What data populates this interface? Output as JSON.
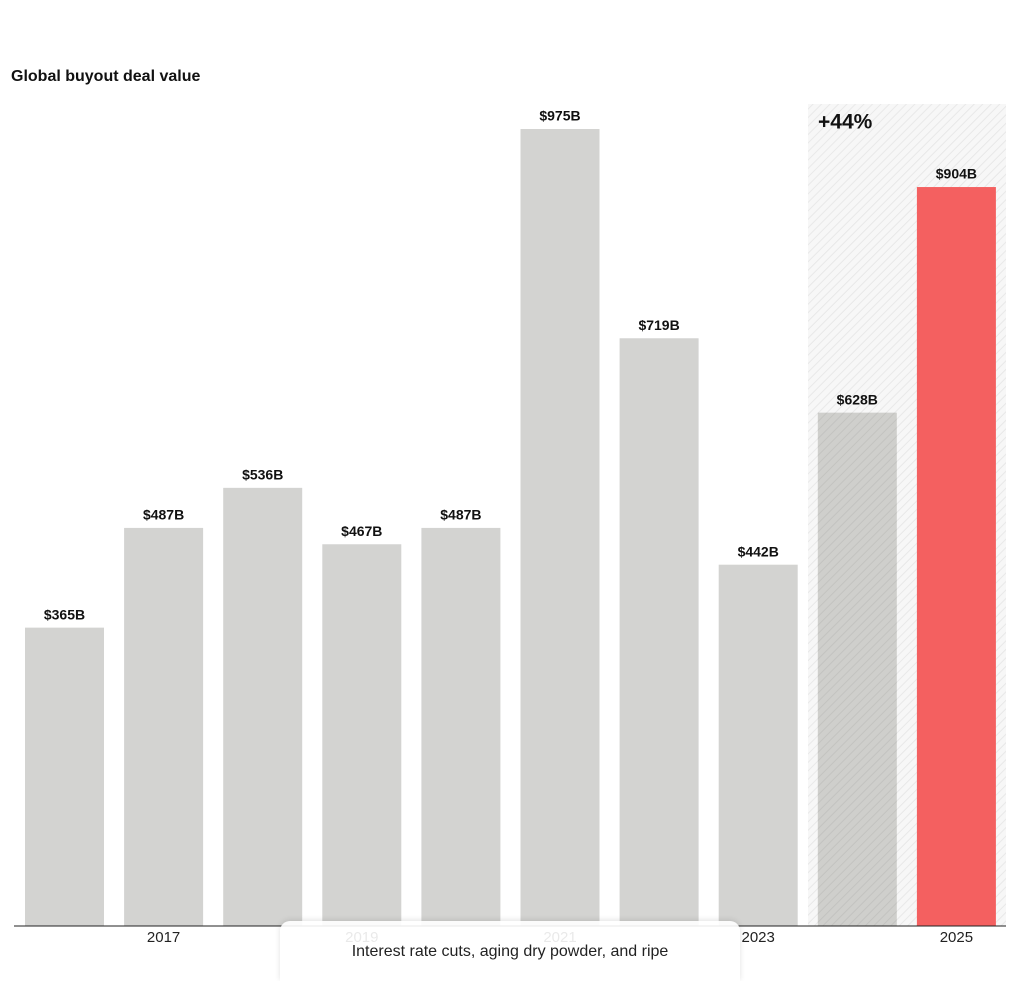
{
  "chart_data": {
    "type": "bar",
    "title": "Global buyout deal value",
    "categories": [
      null,
      "2017",
      null,
      "2019",
      null,
      "2021",
      null,
      "2023",
      null,
      "2025"
    ],
    "values": [
      365,
      487,
      536,
      467,
      487,
      975,
      719,
      442,
      628,
      904
    ],
    "value_labels": [
      "$365B",
      "$487B",
      "$536B",
      "$467B",
      "$487B",
      "$975B",
      "$719B",
      "$442B",
      "$628B",
      "$904B"
    ],
    "colors": [
      "#d3d3d1",
      "#d3d3d1",
      "#d3d3d1",
      "#d3d3d1",
      "#d3d3d1",
      "#d3d3d1",
      "#d3d3d1",
      "#d3d3d1",
      "#cfcfcc",
      "#f46060"
    ],
    "annotation": "+44%"
  },
  "popup": {
    "text": "Interest rate cuts, aging dry powder, and ripe"
  }
}
